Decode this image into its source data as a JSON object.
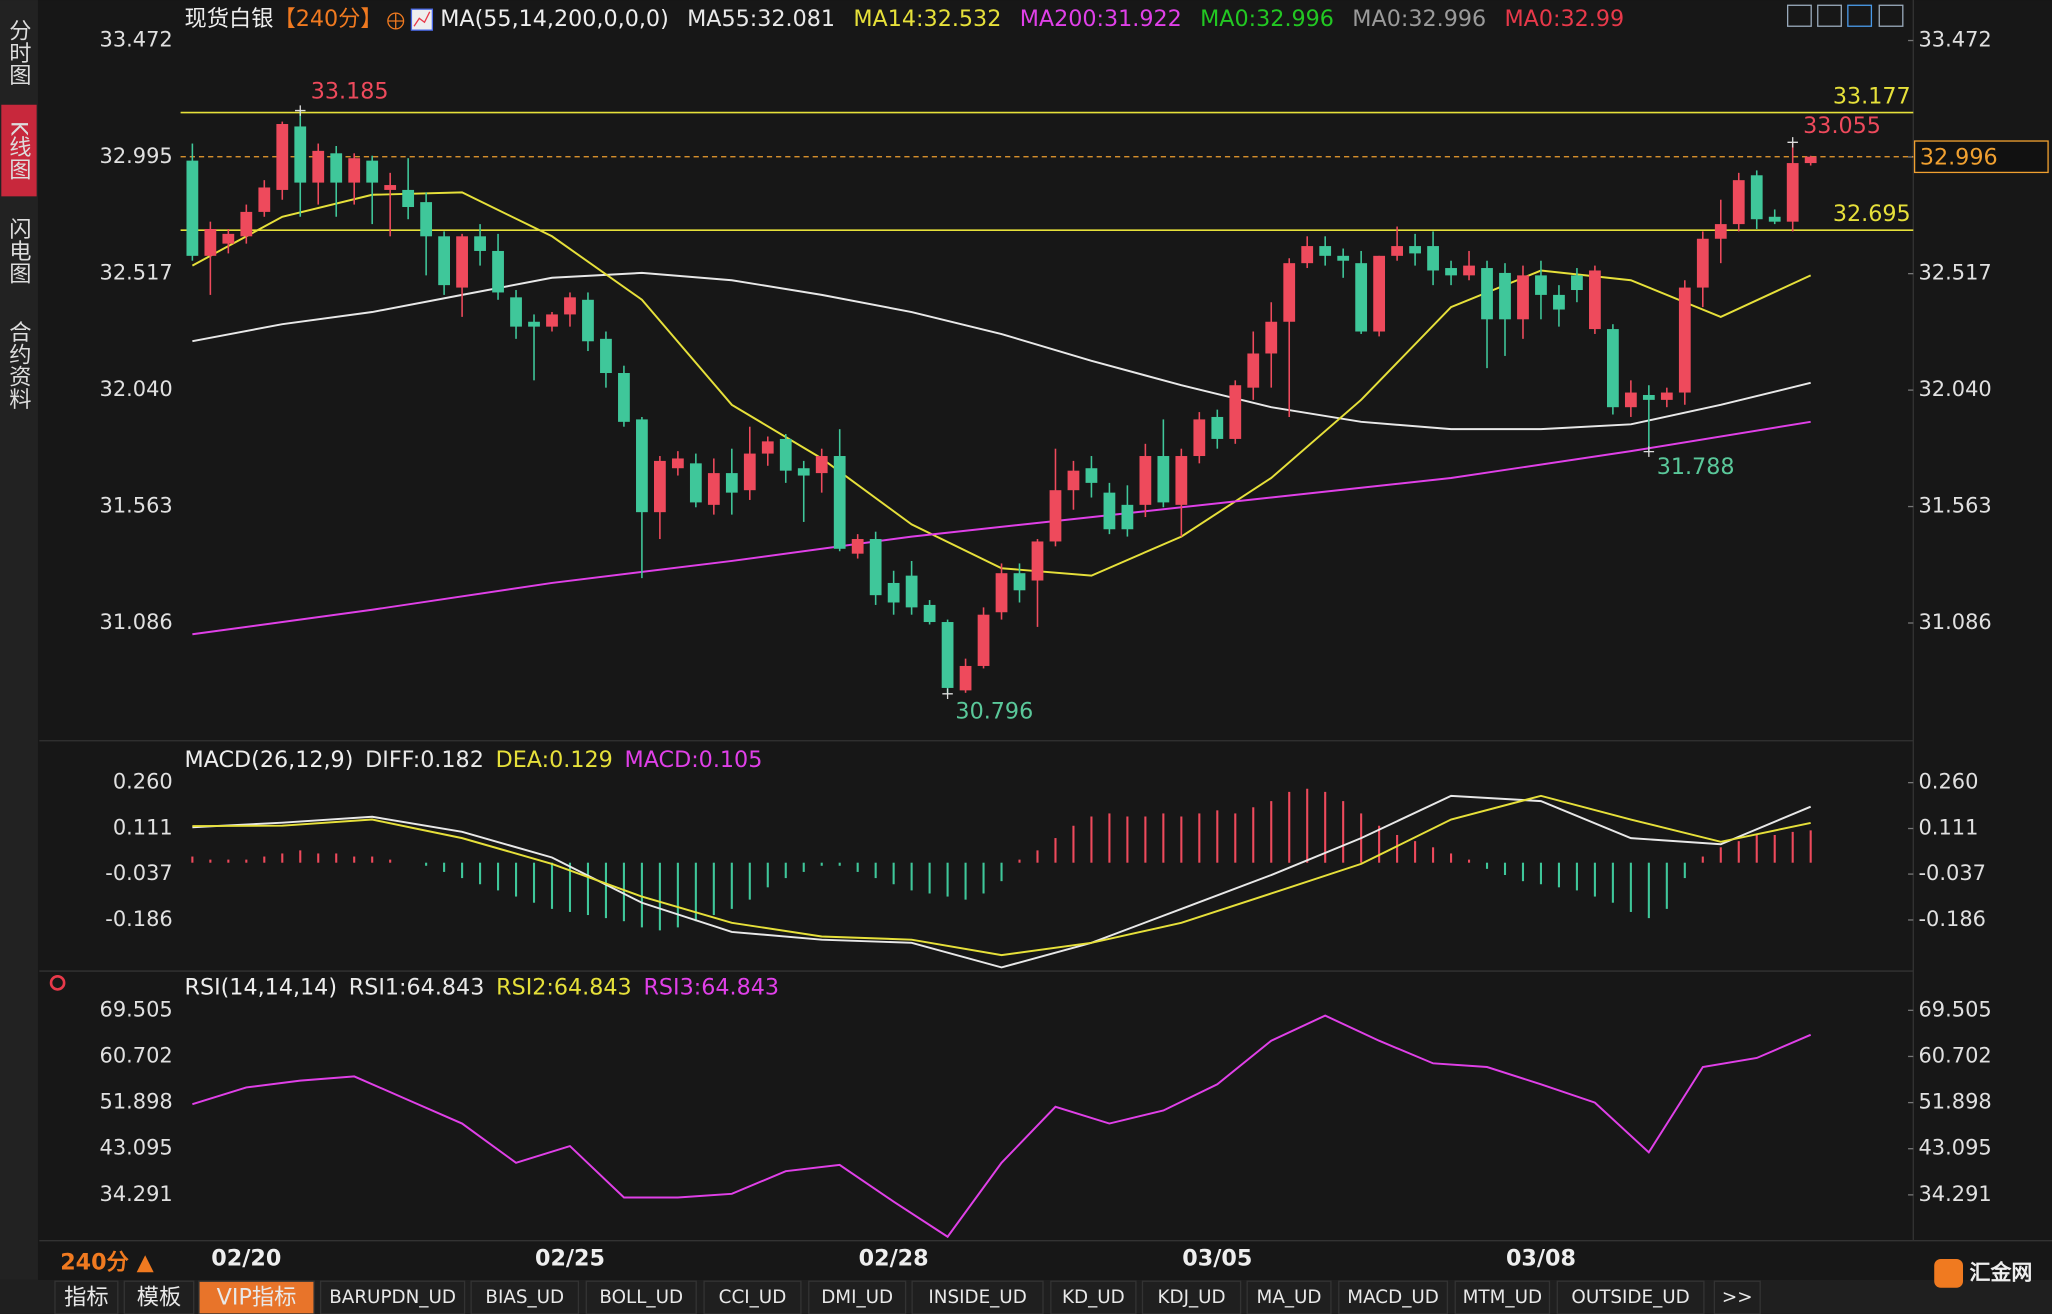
{
  "sidebar": [
    "分时图",
    "K线图",
    "闪电图",
    "合约资料"
  ],
  "chart_data": [
    {
      "type": "candlestick",
      "title": "现货白银",
      "period": "【240分】",
      "indicator": "MA(55,14,200,0,0,0)",
      "categories": [
        null,
        null,
        null,
        "02/20",
        null,
        null,
        null,
        null,
        null,
        null,
        null,
        null,
        null,
        null,
        null,
        null,
        null,
        null,
        null,
        null,
        null,
        "02/25",
        null,
        null,
        null,
        null,
        null,
        null,
        null,
        null,
        null,
        null,
        null,
        null,
        null,
        null,
        null,
        null,
        null,
        "02/28",
        null,
        null,
        null,
        null,
        null,
        null,
        null,
        null,
        null,
        null,
        null,
        null,
        null,
        null,
        null,
        null,
        null,
        "03/05",
        null,
        null,
        null,
        null,
        null,
        null,
        null,
        null,
        null,
        null,
        null,
        null,
        null,
        null,
        null,
        null,
        null,
        "03/08",
        null,
        null,
        null,
        null,
        null,
        null,
        null,
        null,
        null,
        null,
        null,
        null,
        null,
        null,
        null
      ],
      "open": [
        32.98,
        32.59,
        32.64,
        32.67,
        32.77,
        32.86,
        33.12,
        32.89,
        33.01,
        32.89,
        32.98,
        32.86,
        32.86,
        32.81,
        32.67,
        32.46,
        32.67,
        32.61,
        32.42,
        32.32,
        32.3,
        32.35,
        32.41,
        32.25,
        32.11,
        31.92,
        31.54,
        31.72,
        31.74,
        31.57,
        31.7,
        31.63,
        31.78,
        31.84,
        31.72,
        31.7,
        31.77,
        31.37,
        31.43,
        31.25,
        31.28,
        31.16,
        31.09,
        30.81,
        30.91,
        31.13,
        31.29,
        31.26,
        31.42,
        31.63,
        31.72,
        31.62,
        31.57,
        31.57,
        31.77,
        31.57,
        31.77,
        31.93,
        31.84,
        32.05,
        32.19,
        32.32,
        32.56,
        32.63,
        32.59,
        32.56,
        32.28,
        32.59,
        32.63,
        32.63,
        32.54,
        32.51,
        32.54,
        32.52,
        32.33,
        32.51,
        32.43,
        32.51,
        32.29,
        32.29,
        31.97,
        32.02,
        32.0,
        32.03,
        32.46,
        32.66,
        32.72,
        32.92,
        32.75,
        32.73,
        32.97
      ],
      "high": [
        33.05,
        32.73,
        32.7,
        32.8,
        32.9,
        33.14,
        33.185,
        33.05,
        33.04,
        33.01,
        33.0,
        32.93,
        32.99,
        32.85,
        32.69,
        32.68,
        32.72,
        32.68,
        32.45,
        32.35,
        32.36,
        32.44,
        32.44,
        32.28,
        32.14,
        31.93,
        31.77,
        31.79,
        31.78,
        31.76,
        31.8,
        31.89,
        31.85,
        31.86,
        31.75,
        31.8,
        31.88,
        31.45,
        31.46,
        31.3,
        31.34,
        31.18,
        31.1,
        30.94,
        31.15,
        31.33,
        31.33,
        31.43,
        31.8,
        31.75,
        31.77,
        31.66,
        31.65,
        31.82,
        31.92,
        31.8,
        31.95,
        31.96,
        32.08,
        32.28,
        32.4,
        32.58,
        32.67,
        32.67,
        32.62,
        32.61,
        32.59,
        32.71,
        32.68,
        32.69,
        32.57,
        32.61,
        32.57,
        32.56,
        32.55,
        32.57,
        32.47,
        32.54,
        32.55,
        32.31,
        32.08,
        32.06,
        32.05,
        32.49,
        32.69,
        32.82,
        32.93,
        32.94,
        32.78,
        33.055,
        33.0
      ],
      "low": [
        32.57,
        32.43,
        32.6,
        32.64,
        32.75,
        32.82,
        32.75,
        32.8,
        32.75,
        32.8,
        32.72,
        32.67,
        32.74,
        32.51,
        32.43,
        32.34,
        32.55,
        32.41,
        32.25,
        32.08,
        32.28,
        32.3,
        32.2,
        32.05,
        31.89,
        31.27,
        31.43,
        31.69,
        31.56,
        31.53,
        31.53,
        31.59,
        31.73,
        31.66,
        31.5,
        31.62,
        31.38,
        31.35,
        31.16,
        31.12,
        31.12,
        31.08,
        30.796,
        30.8,
        30.9,
        31.1,
        31.17,
        31.07,
        31.4,
        31.55,
        31.6,
        31.45,
        31.44,
        31.52,
        31.56,
        31.44,
        31.74,
        31.8,
        31.82,
        32.0,
        32.05,
        31.93,
        32.54,
        32.55,
        32.5,
        32.27,
        32.26,
        32.57,
        32.55,
        32.47,
        32.47,
        32.49,
        32.13,
        32.18,
        32.25,
        32.33,
        32.3,
        32.4,
        32.27,
        31.94,
        31.93,
        31.788,
        31.97,
        31.98,
        32.38,
        32.56,
        32.69,
        32.7,
        32.72,
        32.69,
        32.96
      ],
      "close": [
        32.59,
        32.7,
        32.68,
        32.77,
        32.87,
        33.13,
        32.89,
        33.02,
        32.89,
        32.99,
        32.89,
        32.88,
        32.79,
        32.67,
        32.47,
        32.67,
        32.61,
        32.44,
        32.3,
        32.3,
        32.35,
        32.42,
        32.24,
        32.11,
        31.91,
        31.54,
        31.75,
        31.76,
        31.58,
        31.7,
        31.62,
        31.78,
        31.83,
        31.71,
        31.69,
        31.77,
        31.39,
        31.43,
        31.2,
        31.17,
        31.15,
        31.09,
        30.82,
        30.91,
        31.12,
        31.29,
        31.22,
        31.42,
        31.63,
        31.71,
        31.66,
        31.47,
        31.47,
        31.77,
        31.58,
        31.77,
        31.92,
        31.84,
        32.06,
        32.19,
        32.32,
        32.56,
        32.63,
        32.59,
        32.57,
        32.28,
        32.59,
        32.63,
        32.6,
        32.53,
        32.51,
        32.55,
        32.33,
        32.33,
        32.51,
        32.43,
        32.37,
        32.45,
        32.53,
        31.97,
        32.03,
        32.0,
        32.03,
        32.46,
        32.66,
        32.72,
        32.9,
        32.74,
        32.73,
        32.97,
        32.996
      ],
      "up_color": "#ee4a5c",
      "down_color": "#3fc79a",
      "series": [
        {
          "name": "MA55:32.081",
          "color": "#e8e8e8",
          "x": [
            0,
            5,
            10,
            15,
            20,
            25,
            30,
            35,
            40,
            45,
            50,
            55,
            60,
            65,
            70,
            75,
            80,
            85,
            90
          ],
          "values": [
            32.24,
            32.31,
            32.36,
            32.43,
            32.5,
            32.52,
            32.49,
            32.43,
            32.36,
            32.27,
            32.16,
            32.06,
            31.97,
            31.91,
            31.88,
            31.88,
            31.9,
            31.98,
            32.07
          ]
        },
        {
          "name": "MA14:32.532",
          "color": "#e6e03a",
          "x": [
            0,
            5,
            10,
            15,
            20,
            25,
            30,
            35,
            40,
            45,
            50,
            55,
            60,
            65,
            70,
            75,
            80,
            85,
            90
          ],
          "values": [
            32.55,
            32.75,
            32.84,
            32.85,
            32.67,
            32.41,
            31.98,
            31.76,
            31.49,
            31.31,
            31.28,
            31.44,
            31.68,
            32.0,
            32.38,
            32.53,
            32.49,
            32.34,
            32.51
          ]
        },
        {
          "name": "MA200:31.922",
          "color": "#e040e8",
          "x": [
            0,
            10,
            20,
            30,
            40,
            50,
            60,
            70,
            80,
            90
          ],
          "values": [
            31.04,
            31.14,
            31.25,
            31.34,
            31.44,
            31.52,
            31.6,
            31.68,
            31.79,
            31.91
          ]
        },
        {
          "name": "MA0:32.996",
          "color": "#22c822"
        },
        {
          "name": "MA0:32.996",
          "color": "#9a9a9a"
        },
        {
          "name": "MA0:32.99",
          "color": "#e8394a"
        }
      ],
      "hlines": [
        {
          "value": 33.177,
          "color": "#e6e03a"
        },
        {
          "value": 32.695,
          "color": "#e6e03a"
        }
      ],
      "last_color": "#f0a030",
      "ylim": [
        30.609,
        33.611
      ],
      "yticks": [
        33.472,
        32.995,
        32.517,
        {
          "value": 32.04,
          "label": "32.040"
        },
        31.563,
        31.086
      ]
    },
    {
      "type": "macd",
      "title": "MACD(26,12,9)",
      "series": [
        {
          "name": "DIFF:0.182",
          "color": "#e8e8e8",
          "x": [
            0,
            5,
            10,
            15,
            20,
            25,
            30,
            35,
            40,
            45,
            50,
            55,
            60,
            65,
            70,
            75,
            80,
            85,
            90
          ],
          "values": [
            0.115,
            0.13,
            0.149,
            0.1,
            0.017,
            -0.13,
            -0.225,
            -0.25,
            -0.26,
            -0.34,
            -0.26,
            -0.15,
            -0.04,
            0.08,
            0.217,
            0.2,
            0.08,
            0.06,
            0.182
          ]
        },
        {
          "name": "DEA:0.129",
          "color": "#e6e03a",
          "x": [
            0,
            5,
            10,
            15,
            20,
            25,
            30,
            35,
            40,
            45,
            50,
            55,
            60,
            65,
            70,
            75,
            80,
            85,
            90
          ],
          "values": [
            0.119,
            0.12,
            0.14,
            0.08,
            -0.004,
            -0.11,
            -0.195,
            -0.24,
            -0.25,
            -0.3,
            -0.26,
            -0.195,
            -0.1,
            -0.004,
            0.14,
            0.217,
            0.14,
            0.068,
            0.129
          ]
        }
      ],
      "histogram": {
        "name": "MACD:0.105",
        "color": "#e040e8",
        "up_color": "#ee4a5c",
        "down_color": "#3fc79a",
        "values": [
          0.02,
          0.01,
          0.01,
          0.01,
          0.02,
          0.03,
          0.04,
          0.03,
          0.03,
          0.02,
          0.02,
          0.01,
          0.0,
          -0.01,
          -0.03,
          -0.05,
          -0.07,
          -0.09,
          -0.11,
          -0.13,
          -0.15,
          -0.16,
          -0.17,
          -0.18,
          -0.19,
          -0.21,
          -0.22,
          -0.21,
          -0.19,
          -0.17,
          -0.15,
          -0.12,
          -0.08,
          -0.05,
          -0.03,
          -0.01,
          -0.01,
          -0.03,
          -0.05,
          -0.07,
          -0.09,
          -0.1,
          -0.11,
          -0.12,
          -0.1,
          -0.06,
          0.01,
          0.04,
          0.08,
          0.12,
          0.15,
          0.16,
          0.15,
          0.15,
          0.16,
          0.15,
          0.16,
          0.17,
          0.16,
          0.18,
          0.2,
          0.23,
          0.24,
          0.23,
          0.2,
          0.16,
          0.12,
          0.09,
          0.07,
          0.05,
          0.03,
          0.01,
          -0.02,
          -0.04,
          -0.06,
          -0.07,
          -0.08,
          -0.09,
          -0.11,
          -0.13,
          -0.16,
          -0.18,
          -0.15,
          -0.05,
          0.02,
          0.05,
          0.07,
          0.09,
          0.09,
          0.1,
          0.105
        ]
      },
      "ylim": [
        -0.352,
        0.294
      ],
      "yticks": [
        {
          "value": 0.26,
          "label": "0.260"
        },
        0.111,
        -0.037,
        -0.186
      ]
    },
    {
      "type": "rsi",
      "title": "RSI(14,14,14)",
      "series": [
        {
          "name": "RSI1:64.843",
          "color": "#e8e8e8"
        },
        {
          "name": "RSI2:64.843",
          "color": "#e6e03a"
        },
        {
          "name": "RSI3:64.843",
          "color": "#e040e8",
          "x": [
            0,
            3,
            6,
            9,
            12,
            15,
            18,
            21,
            24,
            27,
            30,
            33,
            36,
            39,
            42,
            45,
            48,
            51,
            54,
            57,
            60,
            63,
            66,
            69,
            72,
            75,
            78,
            81,
            84,
            87,
            90
          ],
          "values": [
            51.6,
            54.8,
            56.1,
            56.9,
            52.4,
            47.9,
            40.4,
            43.6,
            33.8,
            33.8,
            34.5,
            38.8,
            40.0,
            33.0,
            26.3,
            40.4,
            51.1,
            47.9,
            50.4,
            55.4,
            63.7,
            68.5,
            63.7,
            59.4,
            58.7,
            55.4,
            51.9,
            42.4,
            58.7,
            60.4,
            64.843
          ]
        }
      ],
      "ylim": [
        25.55,
        71.25
      ],
      "yticks": [
        69.505,
        60.702,
        51.898,
        43.095,
        34.291
      ]
    }
  ],
  "footer": {
    "period": "240分 ▲",
    "tabs": [
      "指标",
      "模板",
      "VIP指标",
      "BARUPDN_UD",
      "BIAS_UD",
      "BOLL_UD",
      "CCI_UD",
      "DMI_UD",
      "INSIDE_UD",
      "KD_UD",
      "KDJ_UD",
      "MA_UD",
      "MACD_UD",
      "MTM_UD",
      "OUTSIDE_UD",
      ">>"
    ],
    "logo": "汇金网"
  }
}
